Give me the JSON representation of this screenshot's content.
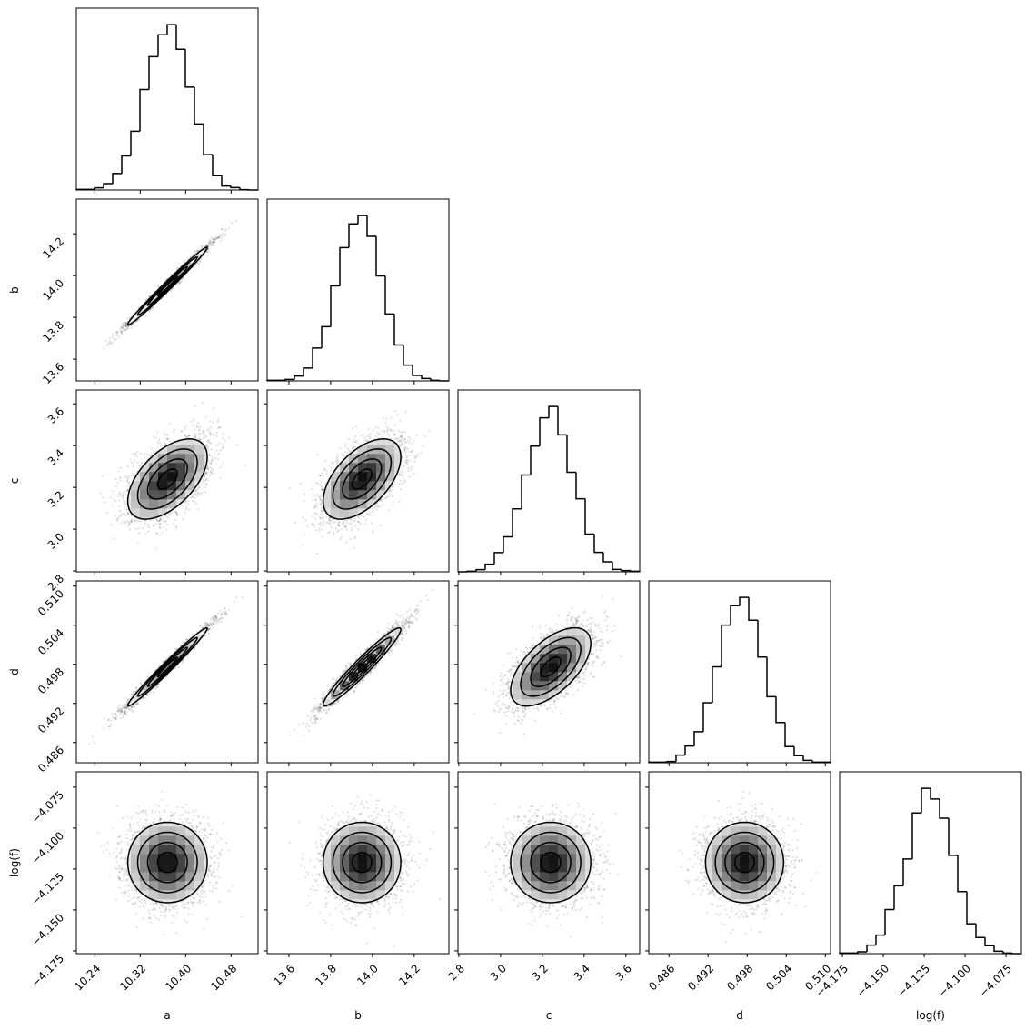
{
  "chart_data": {
    "type": "corner",
    "bins": 20,
    "contour_levels_sigma": [
      0.5,
      1.0,
      1.5,
      2.0
    ],
    "colors": {
      "line": "#000000",
      "points": "#000000",
      "density_low": "#ffffff",
      "density_high": "#000000"
    },
    "grid": false,
    "parameters": [
      {
        "label": "a",
        "range": [
          10.2075,
          10.5275
        ],
        "ticks": [
          10.24,
          10.32,
          10.4,
          10.48
        ],
        "tick_labels": [
          "10.24",
          "10.32",
          "10.40",
          "10.48"
        ],
        "mean": 10.368,
        "std": 0.035,
        "hist_counts": [
          2,
          2,
          7,
          21,
          54,
          112,
          193,
          330,
          438,
          510,
          543,
          462,
          338,
          217,
          116,
          47,
          13,
          8,
          1,
          0
        ]
      },
      {
        "label": "b",
        "range": [
          13.496,
          14.366
        ],
        "ticks": [
          13.6,
          13.8,
          14.0,
          14.2
        ],
        "tick_labels": [
          "13.6",
          "13.8",
          "14.0",
          "14.2"
        ],
        "mean": 13.95,
        "std": 0.093,
        "hist_counts": [
          2,
          2,
          5,
          16,
          42,
          108,
          178,
          312,
          438,
          516,
          543,
          475,
          345,
          220,
          118,
          52,
          18,
          8,
          2,
          0
        ]
      },
      {
        "label": "c",
        "range": [
          2.796,
          3.666
        ],
        "ticks": [
          2.8,
          3.0,
          3.2,
          3.4,
          3.6
        ],
        "tick_labels": [
          "2.8",
          "3.0",
          "3.2",
          "3.4",
          "3.6"
        ],
        "mean": 3.24,
        "std": 0.096,
        "hist_counts": [
          0,
          2,
          7,
          25,
          63,
          115,
          207,
          318,
          413,
          506,
          543,
          450,
          327,
          240,
          124,
          64,
          33,
          8,
          4,
          2
        ]
      },
      {
        "label": "d",
        "range": [
          0.4829,
          0.5108
        ],
        "ticks": [
          0.486,
          0.492,
          0.498,
          0.504,
          0.51
        ],
        "tick_labels": [
          "0.486",
          "0.492",
          "0.498",
          "0.504",
          "0.510"
        ],
        "mean": 0.4976,
        "std": 0.003,
        "hist_counts": [
          2,
          2,
          4,
          25,
          55,
          102,
          197,
          315,
          452,
          516,
          543,
          468,
          347,
          217,
          132,
          53,
          23,
          8,
          2,
          2
        ]
      },
      {
        "label": "log(f)",
        "range": [
          -4.1767,
          -4.0656
        ],
        "ticks": [
          -4.175,
          -4.15,
          -4.125,
          -4.1,
          -4.075
        ],
        "tick_labels": [
          "−4.175",
          "−4.150",
          "−4.125",
          "−4.100",
          "−4.075"
        ],
        "mean": -4.121,
        "std": 0.0123,
        "hist_counts": [
          2,
          2,
          6,
          28,
          61,
          145,
          223,
          311,
          462,
          543,
          508,
          445,
          323,
          204,
          98,
          53,
          26,
          8,
          2,
          0
        ]
      }
    ],
    "correlations": [
      [
        1.0,
        0.99,
        0.55,
        0.985,
        0.0
      ],
      [
        0.99,
        1.0,
        0.55,
        0.96,
        0.0
      ],
      [
        0.55,
        0.55,
        1.0,
        0.6,
        0.0
      ],
      [
        0.985,
        0.96,
        0.6,
        1.0,
        0.0
      ],
      [
        0.0,
        0.0,
        0.0,
        0.0,
        1.0
      ]
    ]
  }
}
